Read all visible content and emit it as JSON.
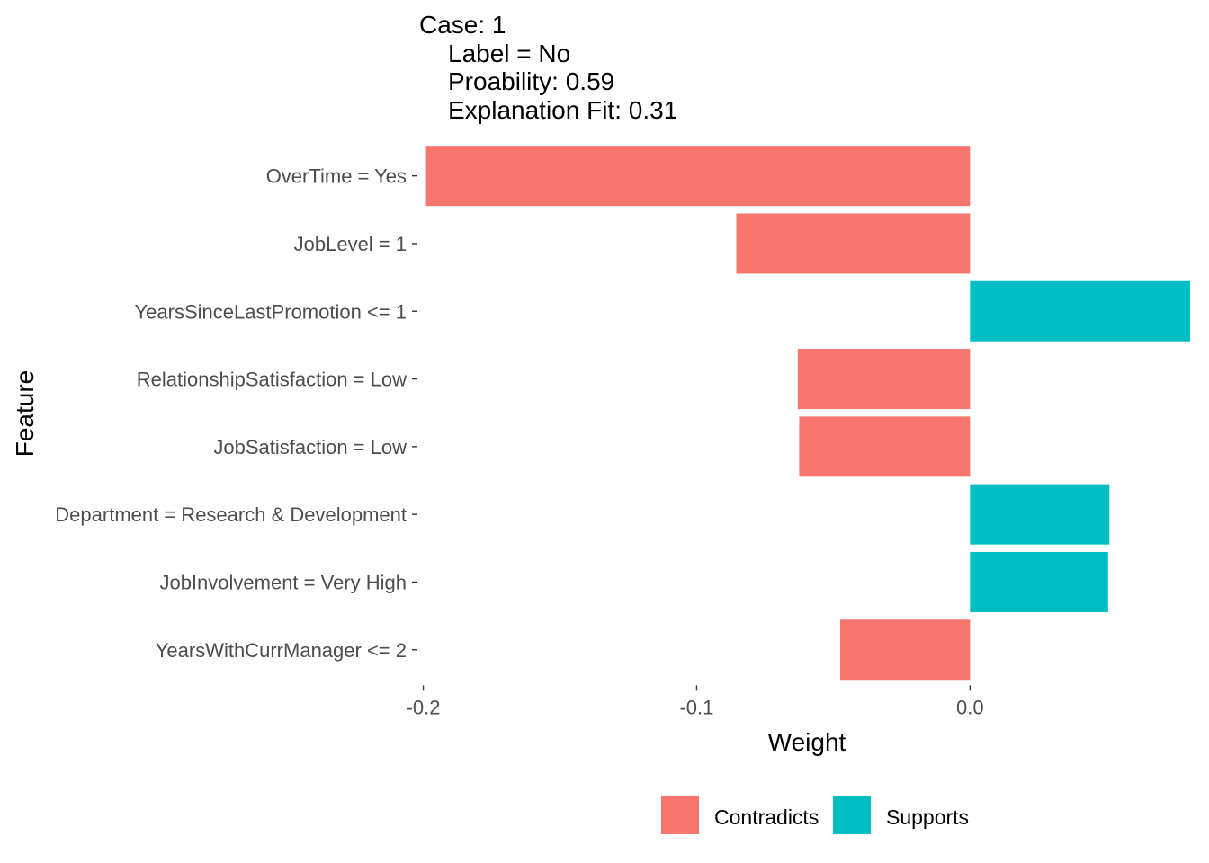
{
  "chart_data": {
    "type": "bar",
    "orientation": "horizontal",
    "title_lines": [
      "Case: 1",
      "Label = No",
      "Proability: 0.59",
      "Explanation Fit: 0.31"
    ],
    "xlabel": "Weight",
    "ylabel": "Feature",
    "categories": [
      "OverTime = Yes",
      "JobLevel = 1",
      "YearsSinceLastPromotion <= 1",
      "RelationshipSatisfaction = Low",
      "JobSatisfaction = Low",
      "Department = Research & Development",
      "JobInvolvement = Very High",
      "YearsWithCurrManager <= 2"
    ],
    "values": [
      -0.199,
      -0.0855,
      0.0805,
      -0.063,
      -0.0625,
      0.051,
      0.0505,
      -0.0475
    ],
    "group": [
      "Contradicts",
      "Contradicts",
      "Supports",
      "Contradicts",
      "Contradicts",
      "Supports",
      "Supports",
      "Contradicts"
    ],
    "xlim": [
      -0.2015,
      0.0815
    ],
    "xticks": [
      -0.2,
      -0.1,
      0.0
    ],
    "xtick_labels": [
      "-0.2",
      "-0.1",
      "0.0"
    ],
    "grid": false,
    "legend": {
      "position": "bottom",
      "items": [
        {
          "label": "Contradicts",
          "color": "#F8766D"
        },
        {
          "label": "Supports",
          "color": "#00BFC4"
        }
      ]
    },
    "colors": {
      "Contradicts": "#F8766D",
      "Supports": "#00BFC4"
    }
  }
}
